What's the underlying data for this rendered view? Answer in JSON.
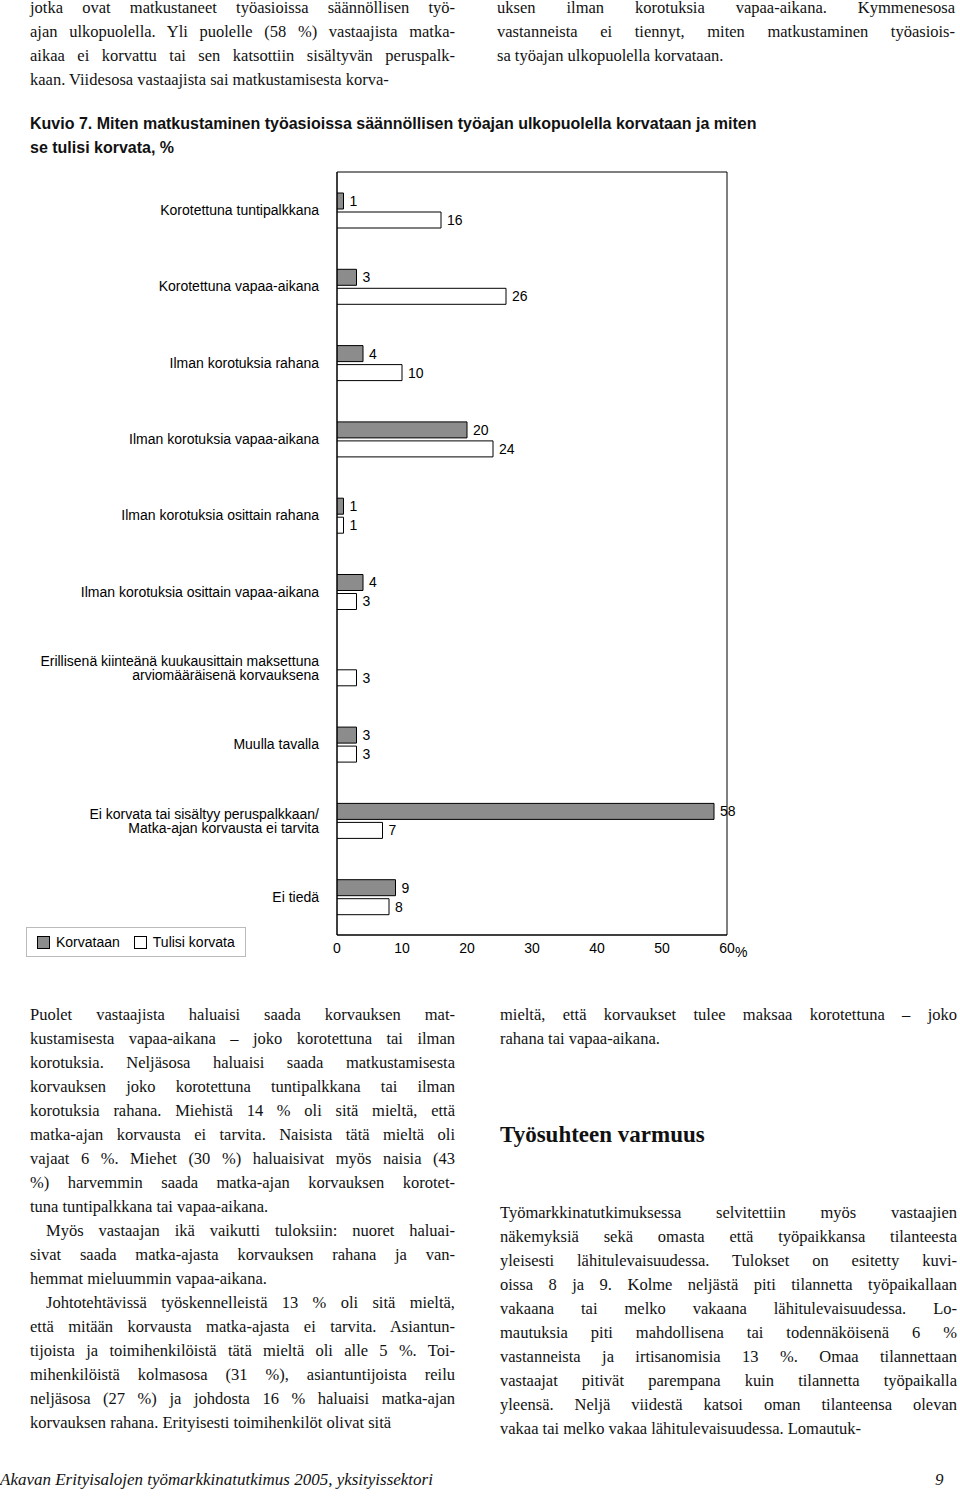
{
  "top_text": {
    "left": [
      [
        "jotka ovat matkustaneet työasioissa säännöllisen työ-",
        "ajan ulkopuolella. Yli puolelle (58 %) vastaajista matka-",
        "aikaa ei korvattu tai sen katsottiin sisältyvän peruspalk-",
        "kaan. Viidesosa vastaajista sai matkustamisesta korva-"
      ]
    ],
    "right": [
      [
        "uksen ilman korotuksia vapaa-aikana. Kymmenesosa",
        "vastanneista ei tiennyt, miten matkustaminen työasiois-",
        "sa työajan ulkopuolella korvataan."
      ]
    ]
  },
  "figure_label": "Kuvio 7.",
  "chart_data": {
    "type": "bar",
    "orientation": "horizontal",
    "title": "Miten matkustaminen työasioissa säännöllisen työajan ulkopuolella korvataan ja miten se tulisi korvata, %",
    "categories": [
      "Korotettuna tuntipalkkana",
      "Korotettuna vapaa-aikana",
      "Ilman korotuksia rahana",
      "Ilman korotuksia vapaa-aikana",
      "Ilman korotuksia osittain rahana",
      "Ilman korotuksia osittain vapaa-aikana",
      "Erillisenä kiinteänä kuukausittain maksettuna arviomääräisenä korvauksena",
      "Muulla tavalla",
      "Ei korvata tai sisältyy peruspalkkaan/ Matka-ajan korvausta ei tarvita",
      "Ei tiedä"
    ],
    "series": [
      {
        "name": "Korvataan",
        "color": "#8c8c8c",
        "values": [
          1,
          3,
          4,
          20,
          1,
          4,
          0,
          3,
          58,
          9
        ]
      },
      {
        "name": "Tulisi korvata",
        "color": "#ffffff",
        "values": [
          16,
          26,
          10,
          24,
          1,
          3,
          3,
          3,
          7,
          8
        ]
      }
    ],
    "xlim": [
      0,
      60
    ],
    "xticks": [
      0,
      10,
      20,
      30,
      40,
      50,
      60
    ],
    "xlabel": "%",
    "data_labels": true,
    "legend": "bottom-left",
    "grid": false
  },
  "body": {
    "left": [
      [
        "Puolet vastaajista haluaisi saada korvauksen mat-",
        "kustamisesta vapaa-aikana – joko korotettuna tai ilman",
        "korotuksia. Neljäsosa haluaisi saada matkustamisesta",
        "korvauksen joko korotettuna tuntipalkkana tai ilman",
        "korotuksia rahana. Miehistä 14 % oli sitä mieltä, että",
        "matka-ajan korvausta ei tarvita. Naisista tätä mieltä oli",
        "vajaat 6 %. Miehet (30 %) haluaisivat myös naisia (43",
        "%) harvemmin saada matka-ajan korvauksen korotet-",
        "tuna tuntipalkkana tai vapaa-aikana."
      ],
      [
        "Myös vastaajan ikä vaikutti tuloksiin: nuoret haluai-",
        "sivat saada matka-ajasta korvauksen rahana ja van-",
        "hemmat mieluummin vapaa-aikana."
      ],
      [
        "Johtotehtävissä työskennelleistä 13 % oli sitä mieltä,",
        "että mitään korvausta matka-ajasta ei tarvita. Asiantun-",
        "tijoista ja toimihenkilöistä tätä mieltä oli alle 5 %. Toi-",
        "mihenkilöistä kolmasosa (31 %), asiantuntijoista reilu",
        "neljäsosa (27 %) ja johdosta 16 % haluaisi matka-ajan",
        "korvauksen rahana. Erityisesti toimihenkilöt olivat sitä"
      ]
    ],
    "right_before": [
      [
        "mieltä, että korvaukset tulee maksaa korotettuna – joko",
        "rahana tai vapaa-aikana."
      ]
    ],
    "heading": "Työsuhteen varmuus",
    "right_after": [
      [
        "Työmarkkinatutkimuksessa selvitettiin myös vastaajien",
        "näkemyksiä sekä omasta että työpaikkansa tilanteesta",
        "yleisesti lähitulevaisuudessa. Tulokset on esitetty kuvi-",
        "oissa 8 ja 9. Kolme neljästä piti tilannetta työpaikallaan",
        "vakaana tai melko vakaana lähitulevaisuudessa. Lo-",
        "mautuksia piti mahdollisena tai todennäköisenä 6 %",
        "vastanneista ja irtisanomisia 13 %. Omaa tilannettaan",
        "vastaajat pitivät parempana kuin tilannetta työpaikalla",
        "yleensä. Neljä viidestä katsoi oman tilanteensa olevan",
        "vakaa tai melko vakaa lähitulevaisuudessa. Lomautuk-"
      ]
    ]
  },
  "footer": {
    "text": "Akavan Erityisalojen työmarkkinatutkimus 2005, yksityissektori",
    "page": "9"
  }
}
